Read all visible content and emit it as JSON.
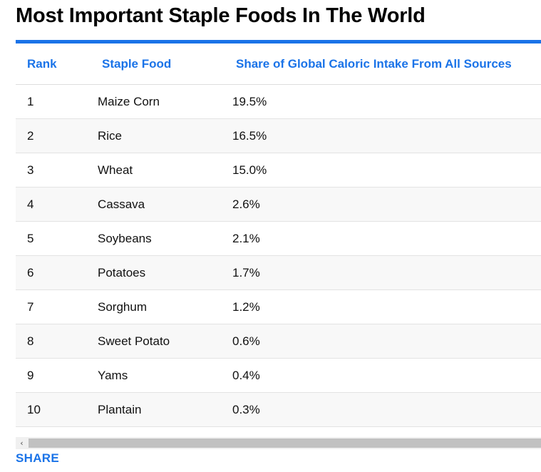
{
  "title": "Most Important Staple Foods In The World",
  "table": {
    "headers": [
      "Rank",
      "Staple Food",
      "Share of Global Caloric Intake From All Sources"
    ],
    "rows": [
      [
        "1",
        "Maize Corn",
        "19.5%"
      ],
      [
        "2",
        "Rice",
        "16.5%"
      ],
      [
        "3",
        "Wheat",
        "15.0%"
      ],
      [
        "4",
        "Cassava",
        "2.6%"
      ],
      [
        "5",
        "Soybeans",
        "2.1%"
      ],
      [
        "6",
        "Potatoes",
        "1.7%"
      ],
      [
        "7",
        "Sorghum",
        "1.2%"
      ],
      [
        "8",
        "Sweet Potato",
        "0.6%"
      ],
      [
        "9",
        "Yams",
        "0.4%"
      ],
      [
        "10",
        "Plantain",
        "0.3%"
      ]
    ]
  },
  "scrollbar": {
    "left_arrow": "‹"
  },
  "share_label": "SHARE",
  "colors": {
    "accent": "#1a73e8"
  }
}
